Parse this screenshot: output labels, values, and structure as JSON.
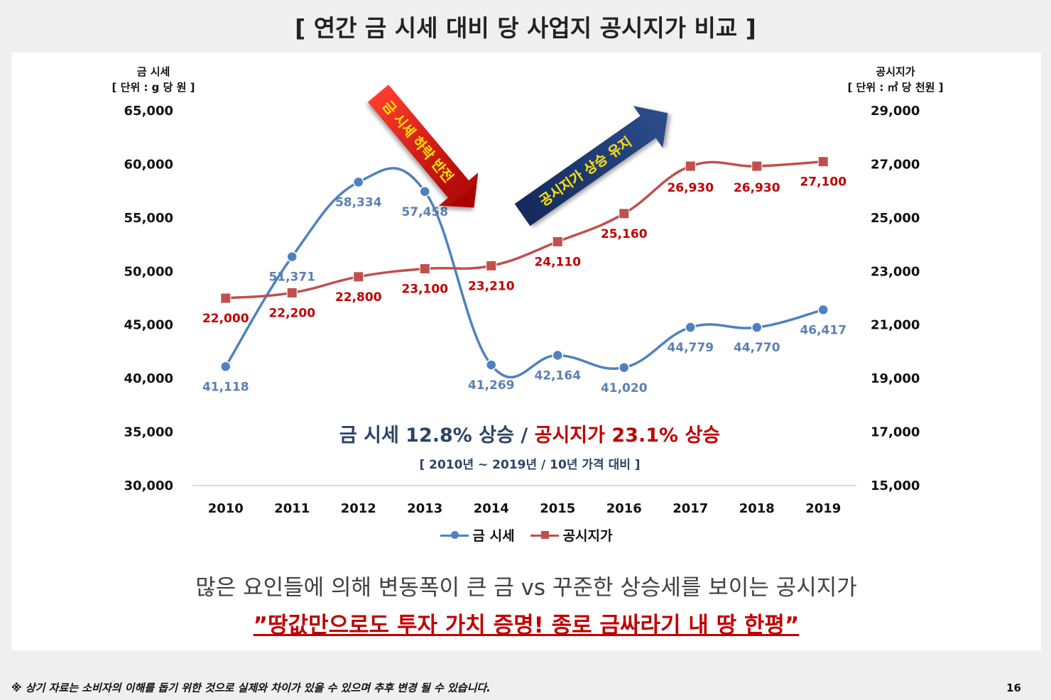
{
  "page_title": "[ 연간 금 시세 대비 당 사업지 공시지가 비교 ]",
  "chart_data": {
    "type": "line",
    "categories": [
      "2010",
      "2011",
      "2012",
      "2013",
      "2014",
      "2015",
      "2016",
      "2017",
      "2018",
      "2019"
    ],
    "y_left": {
      "title_line1": "금 시세",
      "title_line2": "[ 단위 : g 당 원 ]",
      "range": [
        30000,
        65000
      ],
      "ticks": [
        "30,000",
        "35,000",
        "40,000",
        "45,000",
        "50,000",
        "55,000",
        "60,000",
        "65,000"
      ]
    },
    "y_right": {
      "title_line1": "공시지가",
      "title_line2": "[ 단위 : ㎡ 당 천원 ]",
      "range": [
        15000,
        29000
      ],
      "ticks": [
        "15,000",
        "17,000",
        "19,000",
        "21,000",
        "23,000",
        "25,000",
        "27,000",
        "29,000"
      ]
    },
    "series": [
      {
        "name": "금 시세",
        "axis": "left",
        "color": "#4f81bd",
        "marker": "circle",
        "values": [
          41118,
          51371,
          58334,
          57458,
          41269,
          42164,
          41020,
          44779,
          44770,
          46417
        ],
        "labels": [
          "41,118",
          "51,371",
          "58,334",
          "57,458",
          "41,269",
          "42,164",
          "41,020",
          "44,779",
          "44,770",
          "46,417"
        ]
      },
      {
        "name": "공시지가",
        "axis": "right",
        "color": "#c0504d",
        "marker": "square",
        "values": [
          22000,
          22200,
          22800,
          23100,
          23210,
          24110,
          25160,
          26930,
          26930,
          27100
        ],
        "labels": [
          "22,000",
          "22,200",
          "22,800",
          "23,100",
          "23,210",
          "24,110",
          "25,160",
          "26,930",
          "26,930",
          "27,100"
        ]
      }
    ],
    "annotations": {
      "down_arrow": "금 시세 하락 반전",
      "up_arrow": "공시지가 상승 유지"
    },
    "legend_position": "bottom",
    "grid": false
  },
  "summary": {
    "gold_text": "금 시세 12.8% 상승",
    "separator": " / ",
    "land_text": "공시지가 23.1% 상승",
    "period": "[ 2010년 ~ 2019년 / 10년 가격 대비 ]"
  },
  "message": "많은 요인들에 의해 변동폭이 큰 금 vs 꾸준한 상승세를 보이는 공시지가",
  "highlight": "”땅값만으로도 투자 가치 증명! 종로 금싸라기 내 땅 한평”",
  "disclaimer": "※ 상기 자료는 소비자의 이해를 돕기 위한 것으로 실제와 차이가 있을 수 있으며 추후 변경 될 수 있습니다.",
  "page_number": "16"
}
